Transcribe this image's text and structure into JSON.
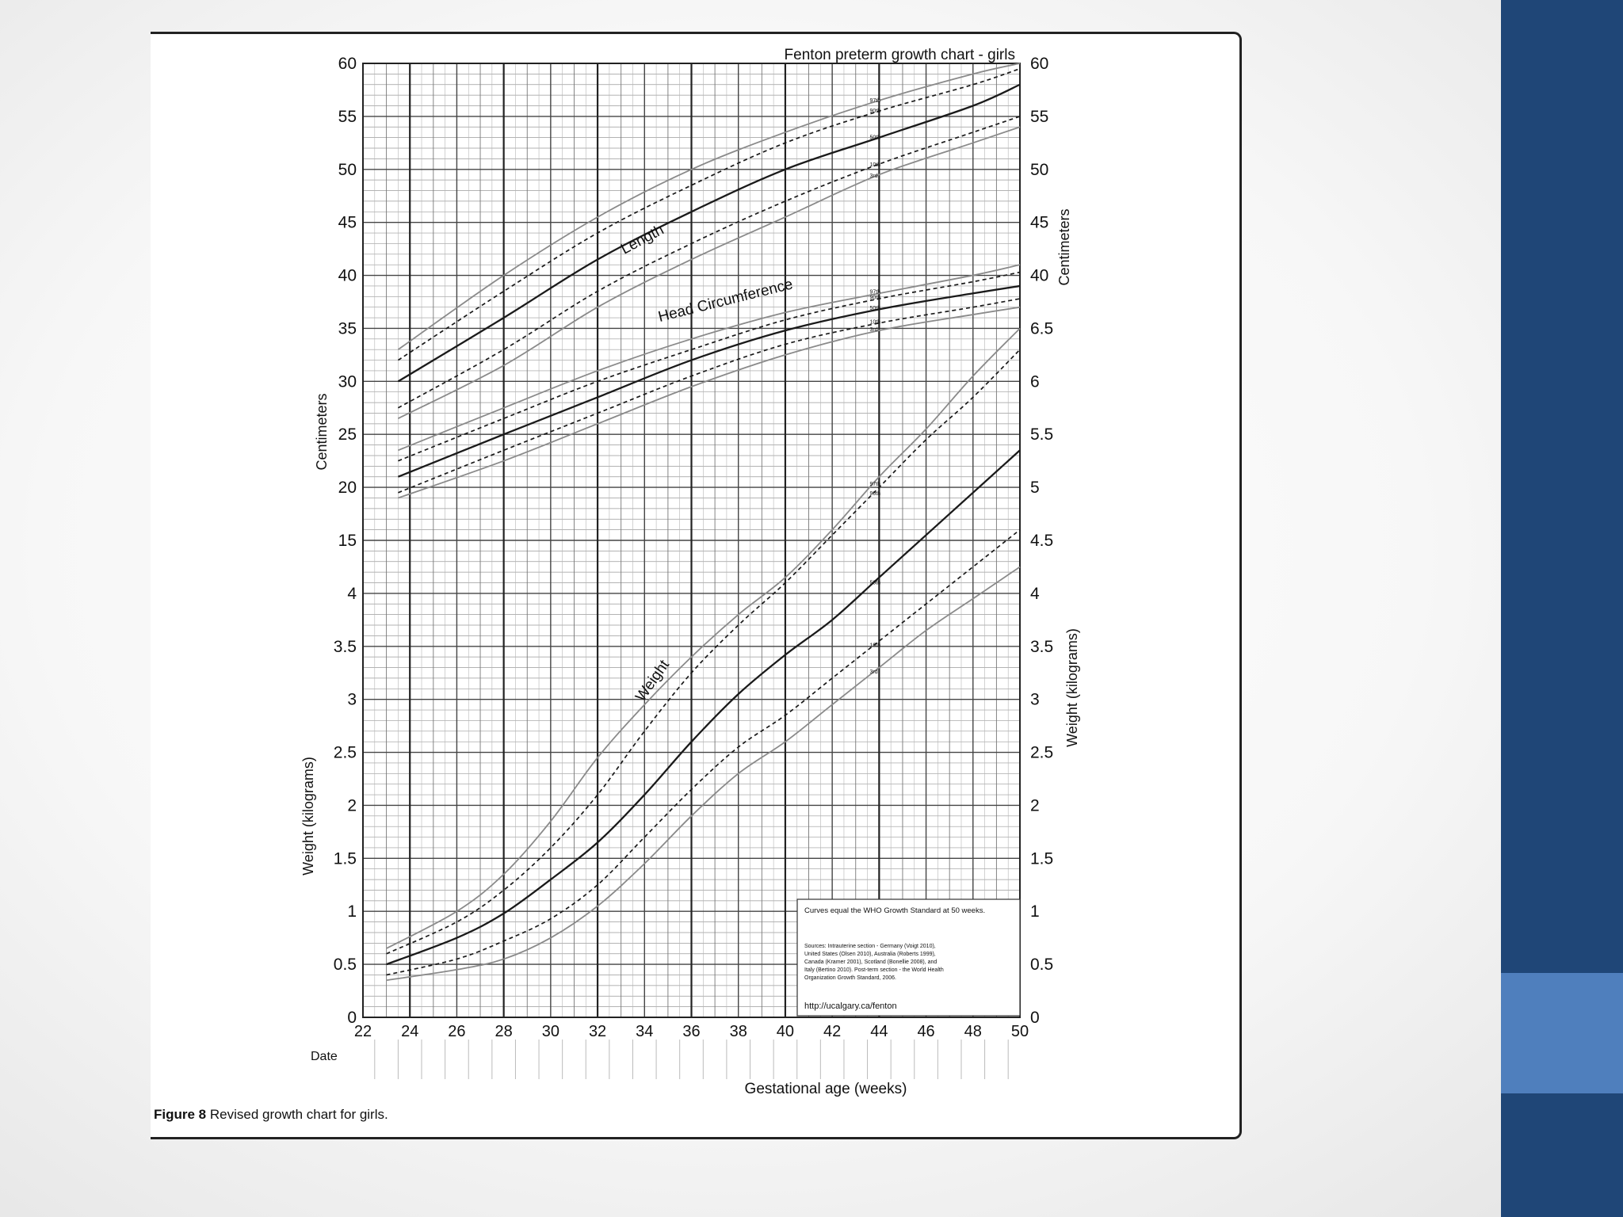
{
  "colors": {
    "sidebar": "#1f4677",
    "sidebar_accent": "#4f7fbd",
    "grid": "#444444",
    "curve_light": "#8a8a8a",
    "curve_dark": "#1a1a1a"
  },
  "caption": {
    "label": "Figure 8",
    "text": "Revised growth chart for girls."
  },
  "chart_data": {
    "type": "line",
    "title": "Fenton preterm growth chart - girls",
    "xlabel": "Gestational age (weeks)",
    "date_label": "Date",
    "left_axis_labels": {
      "upper": "Centimeters",
      "lower": "Weight (kilograms)"
    },
    "right_axis_labels": {
      "upper": "Centimeters",
      "lower": "Weight (kilograms)"
    },
    "xlim": [
      22,
      50
    ],
    "x_ticks": [
      "22",
      "24",
      "26",
      "28",
      "30",
      "32",
      "34",
      "36",
      "38",
      "40",
      "42",
      "44",
      "46",
      "48",
      "50"
    ],
    "left_y_ticks": [
      "0",
      "0.5",
      "1",
      "1.5",
      "2",
      "2.5",
      "3",
      "3.5",
      "4",
      "15",
      "20",
      "25",
      "30",
      "35",
      "40",
      "45",
      "50",
      "55",
      "60"
    ],
    "right_y_ticks": [
      "0",
      "0.5",
      "1",
      "1.5",
      "2",
      "2.5",
      "3",
      "3.5",
      "4",
      "4.5",
      "5",
      "5.5",
      "6",
      "6.5",
      "40",
      "45",
      "50",
      "55",
      "60"
    ],
    "grid": true,
    "curve_labels": [
      "Length",
      "Head Circumference",
      "Weight"
    ],
    "percentile_labels": [
      "97th",
      "90th",
      "50th",
      "10th",
      "3rd"
    ],
    "note": {
      "heading": "Curves equal the WHO Growth Standard at 50 weeks.",
      "sources": [
        "Sources: Intrauterine section - Germany (Voigt 2010),",
        "United States (Olsen 2010), Australia (Roberts 1999),",
        "Canada (Kramer 2001), Scotland (Bonellie 2008), and",
        "Italy (Bertino 2010). Post-term section - the World Health",
        "Organization Growth Standard, 2006."
      ],
      "url": "http://ucalgary.ca/fenton"
    },
    "series": [
      {
        "name": "Length 97th",
        "group": "length",
        "style": "light",
        "x": [
          23.5,
          28,
          32,
          36,
          40,
          44,
          48,
          50
        ],
        "y": [
          33,
          40,
          45.5,
          50,
          53.5,
          56.5,
          59,
          60
        ]
      },
      {
        "name": "Length 90th",
        "group": "length",
        "style": "dash",
        "x": [
          23.5,
          28,
          32,
          36,
          40,
          44,
          48,
          50
        ],
        "y": [
          32,
          38.5,
          44,
          48.5,
          52.5,
          55.5,
          58,
          59.5
        ]
      },
      {
        "name": "Length 50th",
        "group": "length",
        "style": "solid",
        "x": [
          23.5,
          28,
          32,
          36,
          40,
          44,
          48,
          50
        ],
        "y": [
          30,
          36,
          41.5,
          46,
          50,
          53,
          56,
          58
        ]
      },
      {
        "name": "Length 10th",
        "group": "length",
        "style": "dash",
        "x": [
          23.5,
          28,
          32,
          36,
          40,
          44,
          48,
          50
        ],
        "y": [
          27.5,
          33,
          38.5,
          43,
          47,
          50.5,
          53.5,
          55
        ]
      },
      {
        "name": "Length 3rd",
        "group": "length",
        "style": "light",
        "x": [
          23.5,
          28,
          32,
          36,
          40,
          44,
          48,
          50
        ],
        "y": [
          26.5,
          31.5,
          37,
          41.5,
          45.5,
          49.5,
          52.5,
          54
        ]
      },
      {
        "name": "Head circumference 97th",
        "group": "head",
        "style": "light",
        "x": [
          23.5,
          28,
          32,
          36,
          40,
          44,
          48,
          50
        ],
        "y": [
          23.5,
          27.5,
          31,
          34,
          36.5,
          38.3,
          40,
          41
        ]
      },
      {
        "name": "Head circumference 90th",
        "group": "head",
        "style": "dash",
        "x": [
          23.5,
          28,
          32,
          36,
          40,
          44,
          48,
          50
        ],
        "y": [
          22.5,
          26.5,
          30,
          33,
          35.8,
          37.8,
          39.4,
          40.3
        ]
      },
      {
        "name": "Head circumference 50th",
        "group": "head",
        "style": "solid",
        "x": [
          23.5,
          28,
          32,
          36,
          40,
          44,
          48,
          50
        ],
        "y": [
          21,
          25,
          28.5,
          32,
          34.8,
          36.8,
          38.3,
          39
        ]
      },
      {
        "name": "Head circumference 10th",
        "group": "head",
        "style": "dash",
        "x": [
          23.5,
          28,
          32,
          36,
          40,
          44,
          48,
          50
        ],
        "y": [
          19.5,
          23.5,
          27,
          30.5,
          33.5,
          35.5,
          37,
          37.8
        ]
      },
      {
        "name": "Head circumference 3rd",
        "group": "head",
        "style": "light",
        "x": [
          23.5,
          28,
          32,
          36,
          40,
          44,
          48,
          50
        ],
        "y": [
          19,
          22.5,
          26,
          29.5,
          32.5,
          34.8,
          36.3,
          37
        ]
      },
      {
        "name": "Weight 97th",
        "group": "weight",
        "style": "light",
        "x": [
          23,
          26,
          28,
          30,
          32,
          34,
          36,
          38,
          40,
          42,
          44,
          46,
          48,
          50
        ],
        "y": [
          0.65,
          1.0,
          1.35,
          1.85,
          2.45,
          2.95,
          3.4,
          3.8,
          4.15,
          4.6,
          5.1,
          5.55,
          6.05,
          6.5
        ]
      },
      {
        "name": "Weight 90th",
        "group": "weight",
        "style": "dash",
        "x": [
          23,
          26,
          28,
          30,
          32,
          34,
          36,
          38,
          40,
          42,
          44,
          46,
          48,
          50
        ],
        "y": [
          0.6,
          0.9,
          1.2,
          1.6,
          2.1,
          2.7,
          3.25,
          3.7,
          4.1,
          4.55,
          5.0,
          5.45,
          5.85,
          6.3
        ]
      },
      {
        "name": "Weight 50th",
        "group": "weight",
        "style": "solid",
        "x": [
          23,
          26,
          28,
          30,
          32,
          34,
          36,
          38,
          40,
          42,
          44,
          46,
          48,
          50
        ],
        "y": [
          0.5,
          0.75,
          0.98,
          1.3,
          1.65,
          2.1,
          2.6,
          3.05,
          3.42,
          3.75,
          4.15,
          4.55,
          4.95,
          5.35
        ]
      },
      {
        "name": "Weight 10th",
        "group": "weight",
        "style": "dash",
        "x": [
          23,
          26,
          28,
          30,
          32,
          34,
          36,
          38,
          40,
          42,
          44,
          46,
          48,
          50
        ],
        "y": [
          0.4,
          0.55,
          0.72,
          0.93,
          1.25,
          1.7,
          2.15,
          2.55,
          2.85,
          3.2,
          3.55,
          3.9,
          4.25,
          4.6
        ]
      },
      {
        "name": "Weight 3rd",
        "group": "weight",
        "style": "light",
        "x": [
          23,
          26,
          28,
          30,
          32,
          34,
          36,
          38,
          40,
          42,
          44,
          46,
          48,
          50
        ],
        "y": [
          0.35,
          0.45,
          0.55,
          0.75,
          1.05,
          1.45,
          1.9,
          2.3,
          2.6,
          2.95,
          3.3,
          3.65,
          3.95,
          4.25
        ]
      }
    ]
  }
}
